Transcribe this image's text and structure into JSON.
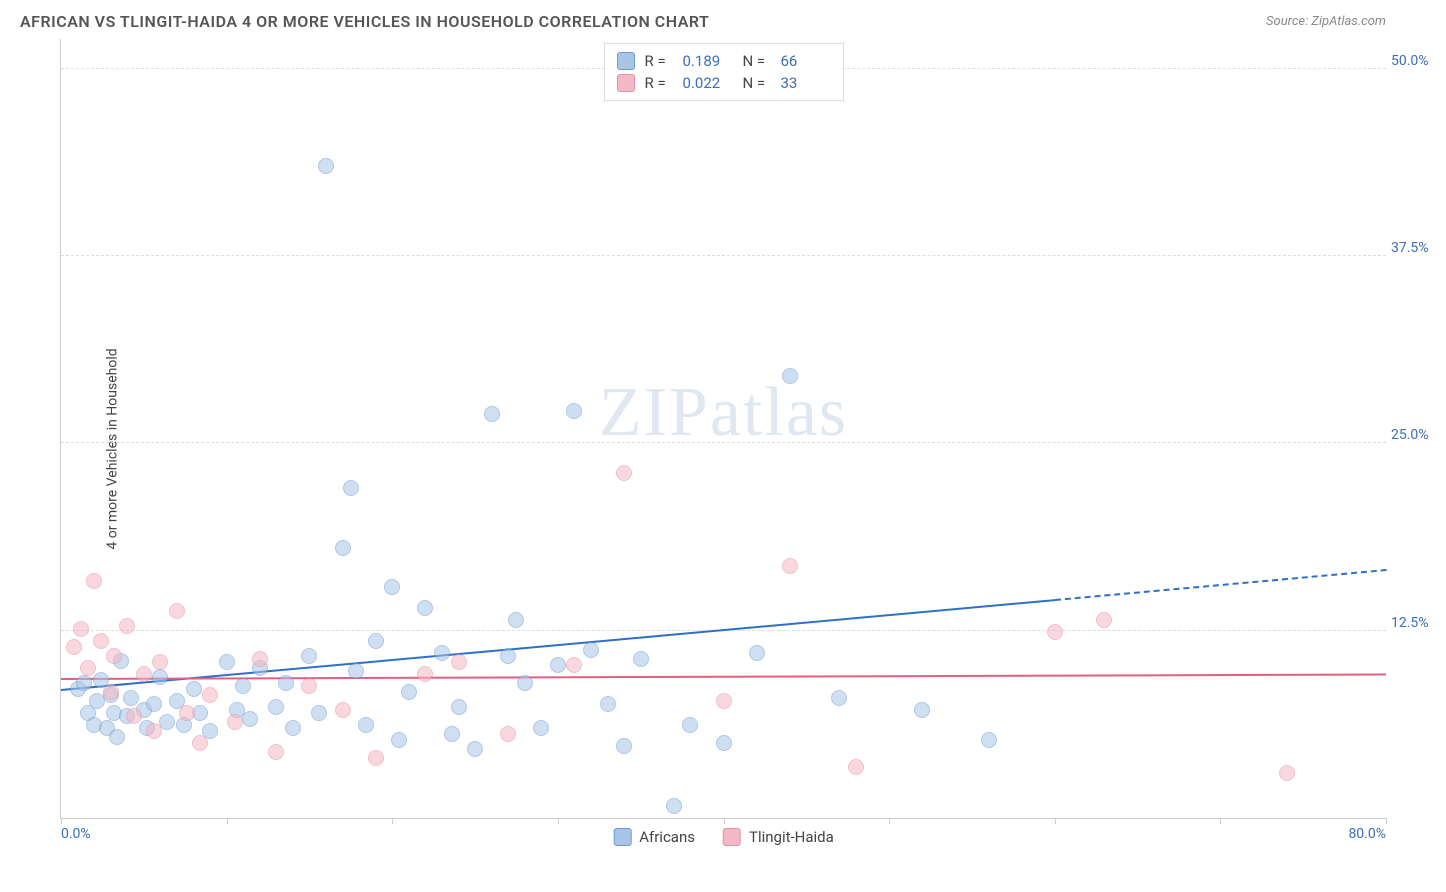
{
  "title": "AFRICAN VS TLINGIT-HAIDA 4 OR MORE VEHICLES IN HOUSEHOLD CORRELATION CHART",
  "source": "Source: ZipAtlas.com",
  "y_axis_label": "4 or more Vehicles in Household",
  "watermark": "ZIPatlas",
  "chart": {
    "type": "scatter",
    "xlim": [
      0,
      80
    ],
    "ylim": [
      0,
      52
    ],
    "x_ticks": [
      0,
      10,
      20,
      30,
      40,
      50,
      60,
      70,
      80
    ],
    "x_tick_labels": {
      "0": "0.0%",
      "80": "80.0%"
    },
    "y_ticks": [
      12.5,
      25.0,
      37.5,
      50.0
    ],
    "y_tick_labels": [
      "12.5%",
      "25.0%",
      "37.5%",
      "50.0%"
    ],
    "background_color": "#ffffff",
    "grid_color": "#dddddd",
    "axis_color": "#cccccc",
    "tick_label_color": "#3b6fb6",
    "marker_radius": 8,
    "marker_stroke_width": 1,
    "series": [
      {
        "name": "Africans",
        "fill": "#a8c5e8",
        "stroke": "#6f9bd1",
        "fill_opacity": 0.55,
        "legend_swatch_fill": "#a8c5e8",
        "legend_swatch_stroke": "#6f9bd1",
        "R": "0.189",
        "N": "66",
        "trend": {
          "color": "#2f6fc9",
          "width": 2,
          "y_at_x0": 8.5,
          "y_at_x60": 14.5,
          "dash_from_x": 60,
          "y_at_x80": 16.5
        },
        "points": [
          [
            1,
            8.6
          ],
          [
            1.4,
            9.0
          ],
          [
            1.6,
            7.0
          ],
          [
            2,
            6.2
          ],
          [
            2.2,
            7.8
          ],
          [
            2.4,
            9.2
          ],
          [
            2.8,
            6.0
          ],
          [
            3,
            8.2
          ],
          [
            3.2,
            7.0
          ],
          [
            3.4,
            5.4
          ],
          [
            3.6,
            10.5
          ],
          [
            4,
            6.8
          ],
          [
            4.2,
            8.0
          ],
          [
            5,
            7.2
          ],
          [
            5.2,
            6.0
          ],
          [
            5.6,
            7.6
          ],
          [
            6,
            9.4
          ],
          [
            6.4,
            6.4
          ],
          [
            7,
            7.8
          ],
          [
            7.4,
            6.2
          ],
          [
            8,
            8.6
          ],
          [
            8.4,
            7.0
          ],
          [
            9,
            5.8
          ],
          [
            10,
            10.4
          ],
          [
            10.6,
            7.2
          ],
          [
            11,
            8.8
          ],
          [
            11.4,
            6.6
          ],
          [
            12,
            10.0
          ],
          [
            13,
            7.4
          ],
          [
            13.6,
            9.0
          ],
          [
            14,
            6.0
          ],
          [
            15,
            10.8
          ],
          [
            15.6,
            7.0
          ],
          [
            16,
            43.5
          ],
          [
            17,
            18.0
          ],
          [
            17.5,
            22.0
          ],
          [
            17.8,
            9.8
          ],
          [
            18.4,
            6.2
          ],
          [
            19,
            11.8
          ],
          [
            20,
            15.4
          ],
          [
            20.4,
            5.2
          ],
          [
            21,
            8.4
          ],
          [
            22,
            14.0
          ],
          [
            23,
            11.0
          ],
          [
            23.6,
            5.6
          ],
          [
            24,
            7.4
          ],
          [
            25,
            4.6
          ],
          [
            26,
            27.0
          ],
          [
            27,
            10.8
          ],
          [
            27.5,
            13.2
          ],
          [
            28,
            9.0
          ],
          [
            29,
            6.0
          ],
          [
            30,
            10.2
          ],
          [
            31,
            27.2
          ],
          [
            32,
            11.2
          ],
          [
            33,
            7.6
          ],
          [
            34,
            4.8
          ],
          [
            35,
            10.6
          ],
          [
            37,
            0.8
          ],
          [
            38,
            6.2
          ],
          [
            40,
            5.0
          ],
          [
            42,
            11.0
          ],
          [
            44,
            29.5
          ],
          [
            47,
            8.0
          ],
          [
            52,
            7.2
          ],
          [
            56,
            5.2
          ]
        ]
      },
      {
        "name": "Tlingit-Haida",
        "fill": "#f3b8c6",
        "stroke": "#e78fa6",
        "fill_opacity": 0.55,
        "legend_swatch_fill": "#f3b8c6",
        "legend_swatch_stroke": "#e78fa6",
        "R": "0.022",
        "N": "33",
        "trend": {
          "color": "#e15f82",
          "width": 2,
          "y_at_x0": 9.2,
          "y_at_x60": 9.4,
          "dash_from_x": null,
          "y_at_x80": 9.5
        },
        "points": [
          [
            0.8,
            11.4
          ],
          [
            1.2,
            12.6
          ],
          [
            1.6,
            10.0
          ],
          [
            2,
            15.8
          ],
          [
            2.4,
            11.8
          ],
          [
            3,
            8.4
          ],
          [
            3.2,
            10.8
          ],
          [
            4,
            12.8
          ],
          [
            4.4,
            6.8
          ],
          [
            5,
            9.6
          ],
          [
            5.6,
            5.8
          ],
          [
            6,
            10.4
          ],
          [
            7,
            13.8
          ],
          [
            7.6,
            7.0
          ],
          [
            8.4,
            5.0
          ],
          [
            9,
            8.2
          ],
          [
            10.5,
            6.4
          ],
          [
            12,
            10.6
          ],
          [
            13,
            4.4
          ],
          [
            15,
            8.8
          ],
          [
            17,
            7.2
          ],
          [
            19,
            4.0
          ],
          [
            22,
            9.6
          ],
          [
            24,
            10.4
          ],
          [
            27,
            5.6
          ],
          [
            31,
            10.2
          ],
          [
            34,
            23.0
          ],
          [
            40,
            7.8
          ],
          [
            44,
            16.8
          ],
          [
            48,
            3.4
          ],
          [
            60,
            12.4
          ],
          [
            63,
            13.2
          ],
          [
            74,
            3.0
          ]
        ]
      }
    ]
  },
  "legend_top": {
    "r_label": "R =",
    "n_label": "N ="
  },
  "legend_bottom": [
    {
      "label": "Africans",
      "fill": "#a8c5e8",
      "stroke": "#6f9bd1"
    },
    {
      "label": "Tlingit-Haida",
      "fill": "#f3b8c6",
      "stroke": "#e78fa6"
    }
  ]
}
